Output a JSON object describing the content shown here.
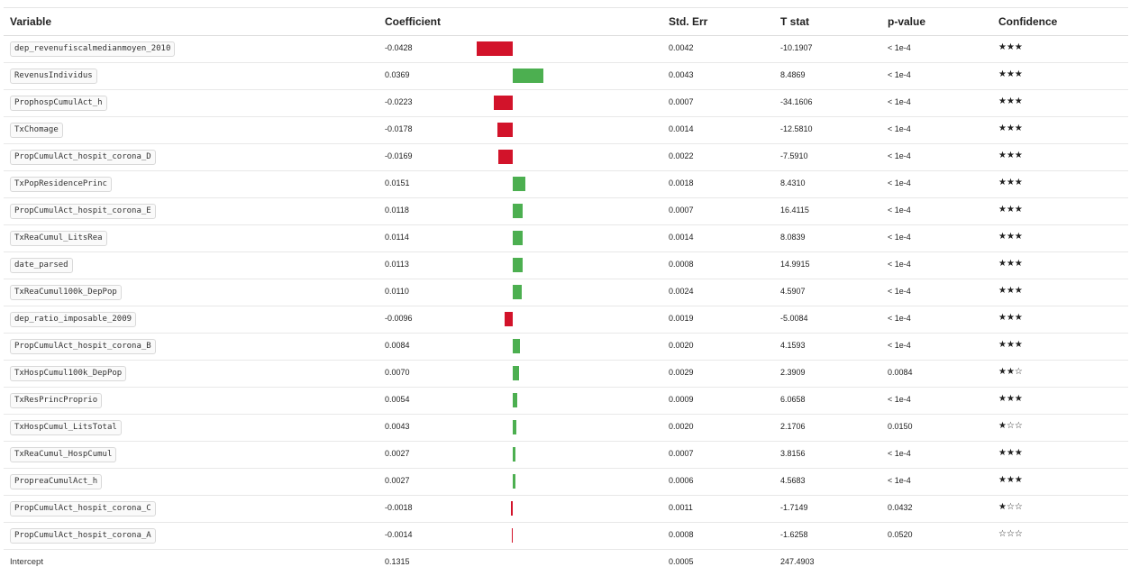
{
  "headers": {
    "variable": "Variable",
    "coefficient": "Coefficient",
    "std_err": "Std. Err",
    "t_stat": "T stat",
    "p_value": "p-value",
    "confidence": "Confidence"
  },
  "colors": {
    "negative": "#d2132a",
    "positive": "#4caf50"
  },
  "rows": [
    {
      "variable": "dep_revenufiscalmedianmoyen_2010",
      "coef": "-0.0428",
      "se": "0.0042",
      "t": "-10.1907",
      "p": "< 1e-4",
      "stars": "★★★",
      "value": -0.0428
    },
    {
      "variable": "RevenusIndividus",
      "coef": "0.0369",
      "se": "0.0043",
      "t": "8.4869",
      "p": "< 1e-4",
      "stars": "★★★",
      "value": 0.0369
    },
    {
      "variable": "ProphospCumulAct_h",
      "coef": "-0.0223",
      "se": "0.0007",
      "t": "-34.1606",
      "p": "< 1e-4",
      "stars": "★★★",
      "value": -0.0223
    },
    {
      "variable": "TxChomage",
      "coef": "-0.0178",
      "se": "0.0014",
      "t": "-12.5810",
      "p": "< 1e-4",
      "stars": "★★★",
      "value": -0.0178
    },
    {
      "variable": "PropCumulAct_hospit_corona_D",
      "coef": "-0.0169",
      "se": "0.0022",
      "t": "-7.5910",
      "p": "< 1e-4",
      "stars": "★★★",
      "value": -0.0169
    },
    {
      "variable": "TxPopResidencePrinc",
      "coef": "0.0151",
      "se": "0.0018",
      "t": "8.4310",
      "p": "< 1e-4",
      "stars": "★★★",
      "value": 0.0151
    },
    {
      "variable": "PropCumulAct_hospit_corona_E",
      "coef": "0.0118",
      "se": "0.0007",
      "t": "16.4115",
      "p": "< 1e-4",
      "stars": "★★★",
      "value": 0.0118
    },
    {
      "variable": "TxReaCumul_LitsRea",
      "coef": "0.0114",
      "se": "0.0014",
      "t": "8.0839",
      "p": "< 1e-4",
      "stars": "★★★",
      "value": 0.0114
    },
    {
      "variable": "date_parsed",
      "coef": "0.0113",
      "se": "0.0008",
      "t": "14.9915",
      "p": "< 1e-4",
      "stars": "★★★",
      "value": 0.0113
    },
    {
      "variable": "TxReaCumul100k_DepPop",
      "coef": "0.0110",
      "se": "0.0024",
      "t": "4.5907",
      "p": "< 1e-4",
      "stars": "★★★",
      "value": 0.011
    },
    {
      "variable": "dep_ratio_imposable_2009",
      "coef": "-0.0096",
      "se": "0.0019",
      "t": "-5.0084",
      "p": "< 1e-4",
      "stars": "★★★",
      "value": -0.0096
    },
    {
      "variable": "PropCumulAct_hospit_corona_B",
      "coef": "0.0084",
      "se": "0.0020",
      "t": "4.1593",
      "p": "< 1e-4",
      "stars": "★★★",
      "value": 0.0084
    },
    {
      "variable": "TxHospCumul100k_DepPop",
      "coef": "0.0070",
      "se": "0.0029",
      "t": "2.3909",
      "p": "0.0084",
      "stars": "★★☆",
      "value": 0.007
    },
    {
      "variable": "TxResPrincProprio",
      "coef": "0.0054",
      "se": "0.0009",
      "t": "6.0658",
      "p": "< 1e-4",
      "stars": "★★★",
      "value": 0.0054
    },
    {
      "variable": "TxHospCumul_LitsTotal",
      "coef": "0.0043",
      "se": "0.0020",
      "t": "2.1706",
      "p": "0.0150",
      "stars": "★☆☆",
      "value": 0.0043
    },
    {
      "variable": "TxReaCumul_HospCumul",
      "coef": "0.0027",
      "se": "0.0007",
      "t": "3.8156",
      "p": "< 1e-4",
      "stars": "★★★",
      "value": 0.0027
    },
    {
      "variable": "PropreaCumulAct_h",
      "coef": "0.0027",
      "se": "0.0006",
      "t": "4.5683",
      "p": "< 1e-4",
      "stars": "★★★",
      "value": 0.0027
    },
    {
      "variable": "PropCumulAct_hospit_corona_C",
      "coef": "-0.0018",
      "se": "0.0011",
      "t": "-1.7149",
      "p": "0.0432",
      "stars": "★☆☆",
      "value": -0.0018
    },
    {
      "variable": "PropCumulAct_hospit_corona_A",
      "coef": "-0.0014",
      "se": "0.0008",
      "t": "-1.6258",
      "p": "0.0520",
      "stars": "☆☆☆",
      "value": -0.0014
    }
  ],
  "intercept": {
    "variable": "Intercept",
    "coef": "0.1315",
    "se": "0.0005",
    "t": "247.4903"
  }
}
